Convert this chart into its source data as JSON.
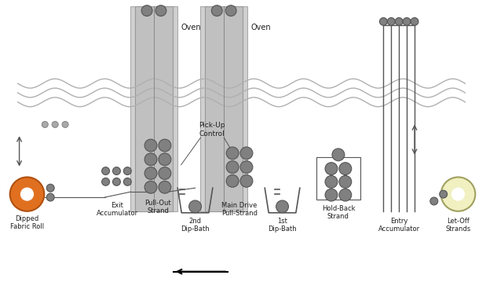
{
  "bg_color": "#ffffff",
  "oven_color": "#cccccc",
  "oven_inner_color": "#d8d8d8",
  "roller_color": "#808080",
  "roller_edge": "#555555",
  "fabric_roll_color": "#e07020",
  "letoff_color": "#f0f0c0",
  "wave_color": "#b0b0b0",
  "line_color": "#555555",
  "text_color": "#202020",
  "labels": {
    "dipped_fabric_roll": "Dipped\nFabric Roll",
    "exit_accumulator": "Exit\nAccumulator",
    "pullout_strand": "Pull-Out\nStrand",
    "pickup_control": "Pick-Up\nControl",
    "main_drive": "Main Drive\nPull-Strand",
    "second_dip": "2nd\nDip-Bath",
    "first_dip": "1st\nDip-Bath",
    "holdback_strand": "Hold-Back\nStrand",
    "entry_accumulator": "Entry\nAccumulator",
    "letoff_strands": "Let-Off\nStrands",
    "oven1": "Oven",
    "oven2": "Oven"
  }
}
